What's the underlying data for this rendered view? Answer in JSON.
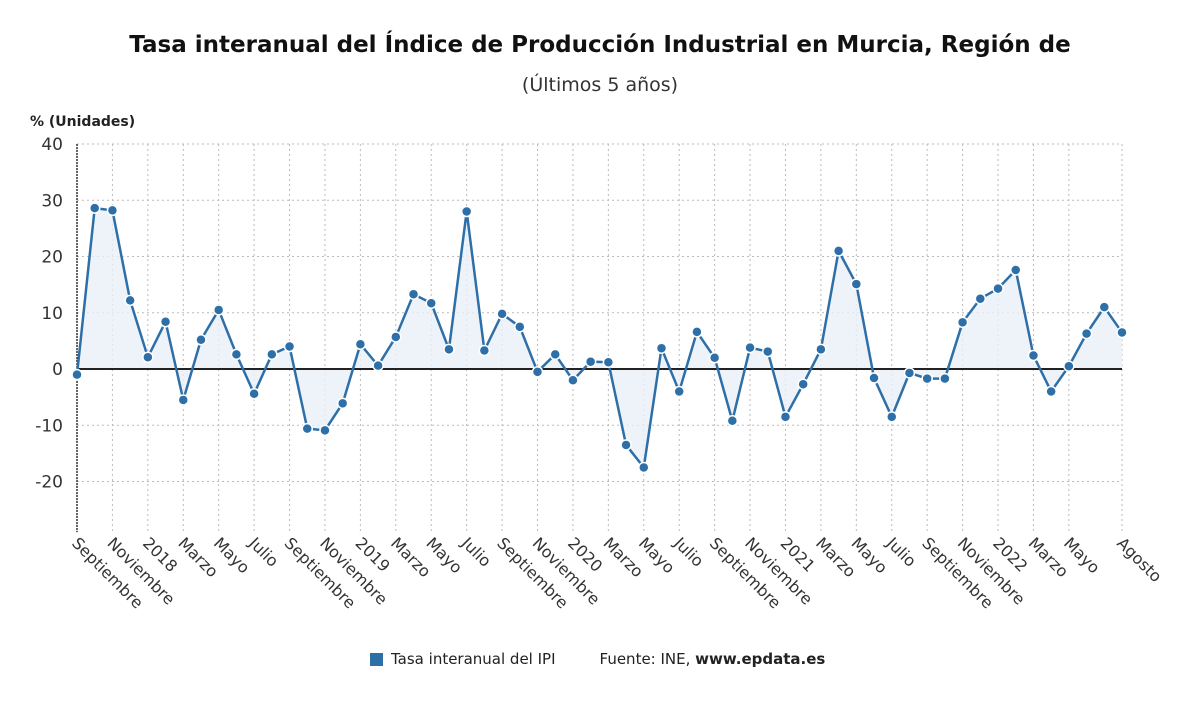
{
  "title": "Tasa interanual del Índice de Producción Industrial en Murcia, Región de",
  "subtitle": "(Últimos 5 años)",
  "colors": {
    "series": "#2e6fa8",
    "fill": "#e8f0f8",
    "grid": "#bbbbbb",
    "zero": "#222222"
  },
  "legend": {
    "label": "Tasa interanual del IPI",
    "source_prefix": "Fuente: INE, ",
    "source_site": "www.epdata.es"
  },
  "chart_data": {
    "type": "line",
    "title": "Tasa interanual del Índice de Producción Industrial en Murcia, Región de",
    "ylabel": "% (Unidades)",
    "ylim": [
      -29,
      40
    ],
    "yticks": [
      40,
      30,
      20,
      10,
      0,
      -10,
      -20
    ],
    "grid": true,
    "legend_position": "bottom",
    "x_labels": [
      {
        "i": 0,
        "t": "Septiembre"
      },
      {
        "i": 2,
        "t": "Noviembre"
      },
      {
        "i": 4,
        "t": "2018"
      },
      {
        "i": 6,
        "t": "Marzo"
      },
      {
        "i": 8,
        "t": "Mayo"
      },
      {
        "i": 10,
        "t": "Julio"
      },
      {
        "i": 12,
        "t": "Septiembre"
      },
      {
        "i": 14,
        "t": "Noviembre"
      },
      {
        "i": 16,
        "t": "2019"
      },
      {
        "i": 18,
        "t": "Marzo"
      },
      {
        "i": 20,
        "t": "Mayo"
      },
      {
        "i": 22,
        "t": "Julio"
      },
      {
        "i": 24,
        "t": "Septiembre"
      },
      {
        "i": 26,
        "t": "Noviembre"
      },
      {
        "i": 28,
        "t": "2020"
      },
      {
        "i": 30,
        "t": "Marzo"
      },
      {
        "i": 32,
        "t": "Mayo"
      },
      {
        "i": 34,
        "t": "Julio"
      },
      {
        "i": 36,
        "t": "Septiembre"
      },
      {
        "i": 38,
        "t": "Noviembre"
      },
      {
        "i": 40,
        "t": "2021"
      },
      {
        "i": 42,
        "t": "Marzo"
      },
      {
        "i": 44,
        "t": "Mayo"
      },
      {
        "i": 46,
        "t": "Julio"
      },
      {
        "i": 48,
        "t": "Septiembre"
      },
      {
        "i": 50,
        "t": "Noviembre"
      },
      {
        "i": 52,
        "t": "2022"
      },
      {
        "i": 54,
        "t": "Marzo"
      },
      {
        "i": 56,
        "t": "Mayo"
      },
      {
        "i": 59,
        "t": "Agosto"
      }
    ],
    "series": [
      {
        "name": "Tasa interanual del IPI",
        "values": [
          -1.0,
          28.6,
          28.2,
          12.2,
          2.1,
          8.4,
          -5.5,
          5.2,
          10.5,
          2.6,
          -4.4,
          2.6,
          4.0,
          -10.6,
          -10.9,
          -6.1,
          4.4,
          0.6,
          5.7,
          13.3,
          11.7,
          3.5,
          28.0,
          3.3,
          9.8,
          7.5,
          -0.5,
          2.6,
          -2.0,
          1.3,
          1.2,
          -13.5,
          -17.5,
          3.7,
          -4.0,
          6.6,
          2.0,
          -9.2,
          3.8,
          3.1,
          -8.5,
          -2.7,
          3.5,
          21.0,
          15.1,
          -1.6,
          -8.5,
          -0.7,
          -1.7,
          -1.7,
          8.3,
          12.5,
          14.3,
          17.6,
          2.4,
          -4.0,
          0.5,
          6.3,
          11.0,
          6.5
        ]
      }
    ]
  }
}
